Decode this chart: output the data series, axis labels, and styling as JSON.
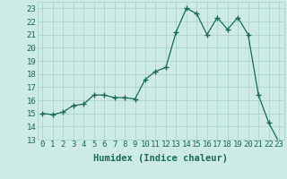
{
  "x": [
    0,
    1,
    2,
    3,
    4,
    5,
    6,
    7,
    8,
    9,
    10,
    11,
    12,
    13,
    14,
    15,
    16,
    17,
    18,
    19,
    20,
    21,
    22,
    23
  ],
  "y": [
    15.0,
    14.9,
    15.1,
    15.6,
    15.7,
    16.4,
    16.4,
    16.2,
    16.2,
    16.1,
    17.6,
    18.2,
    18.5,
    21.2,
    23.0,
    22.6,
    21.0,
    22.3,
    21.4,
    22.3,
    21.0,
    16.4,
    14.3,
    12.8
  ],
  "line_color": "#1a6b5a",
  "marker": "+",
  "marker_size": 4,
  "bg_color": "#ceeae6",
  "grid_color": "#a8cfc9",
  "xlabel": "Humidex (Indice chaleur)",
  "ylim": [
    13,
    23.5
  ],
  "xlim": [
    -0.5,
    23.5
  ],
  "yticks": [
    13,
    14,
    15,
    16,
    17,
    18,
    19,
    20,
    21,
    22,
    23
  ],
  "xticks": [
    0,
    1,
    2,
    3,
    4,
    5,
    6,
    7,
    8,
    9,
    10,
    11,
    12,
    13,
    14,
    15,
    16,
    17,
    18,
    19,
    20,
    21,
    22,
    23
  ],
  "tick_color": "#1a6b5a",
  "label_fontsize": 7.5,
  "tick_fontsize": 6.5
}
